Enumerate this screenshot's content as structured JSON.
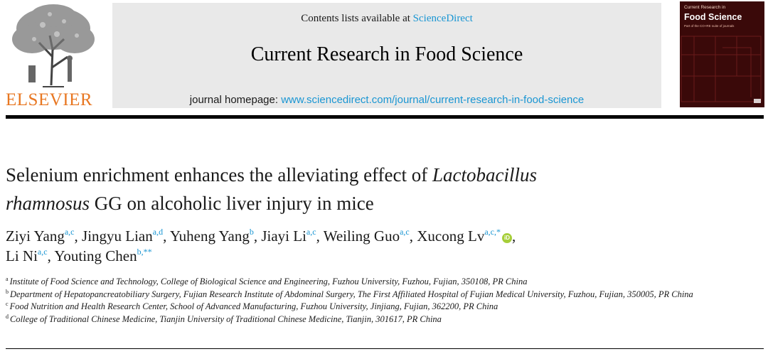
{
  "header": {
    "publisher": "ELSEVIER",
    "contents_prefix": "Contents lists available at ",
    "contents_link": "ScienceDirect",
    "journal_title": "Current Research in Food Science",
    "homepage_prefix": "journal homepage: ",
    "homepage_link": "www.sciencedirect.com/journal/current-research-in-food-science",
    "cover": {
      "subtitle": "Current Research in",
      "title": "Food Science",
      "tagline": "Part of the CO+RE suite of journals"
    }
  },
  "article": {
    "title_part1": "Selenium enrichment enhances the alleviating effect of ",
    "title_italic1": "Lactobacillus",
    "title_italic2": "rhamnosus",
    "title_part2": " GG on alcoholic liver injury in mice",
    "authors": [
      {
        "name": "Ziyi Yang",
        "sup": "a,c",
        "sep": ", "
      },
      {
        "name": "Jingyu Lian",
        "sup": "a,d",
        "sep": ", "
      },
      {
        "name": "Yuheng Yang",
        "sup": "b",
        "sep": ", "
      },
      {
        "name": "Jiayi Li",
        "sup": "a,c",
        "sep": ", "
      },
      {
        "name": "Weiling Guo",
        "sup": "a,c",
        "sep": ", "
      },
      {
        "name": "Xucong Lv",
        "sup": "a,c,*",
        "sep": ","
      },
      {
        "name": "Li Ni",
        "sup": "a,c",
        "sep": ", "
      },
      {
        "name": "Youting Chen",
        "sup": "b,**",
        "sep": ""
      }
    ],
    "orcid_label": "iD",
    "affiliations": [
      {
        "letter": "a",
        "text": "Institute of Food Science and Technology, College of Biological Science and Engineering, Fuzhou University, Fuzhou, Fujian, 350108, PR China"
      },
      {
        "letter": "b",
        "text": "Department of Hepatopancreatobiliary Surgery, Fujian Research Institute of Abdominal Surgery, The First Affiliated Hospital of Fujian Medical University, Fuzhou, Fujian, 350005, PR China"
      },
      {
        "letter": "c",
        "text": "Food Nutrition and Health Research Center, School of Advanced Manufacturing, Fuzhou University, Jinjiang, Fujian, 362200, PR China"
      },
      {
        "letter": "d",
        "text": "College of Traditional Chinese Medicine, Tianjin University of Traditional Chinese Medicine, Tianjin, 301617, PR China"
      }
    ]
  },
  "colors": {
    "link": "#1a96d3",
    "publisher_orange": "#e87722",
    "banner_gray": "#e9e9e9",
    "cover_dark_red": "#3a0909",
    "orcid_green": "#a6ce39"
  }
}
